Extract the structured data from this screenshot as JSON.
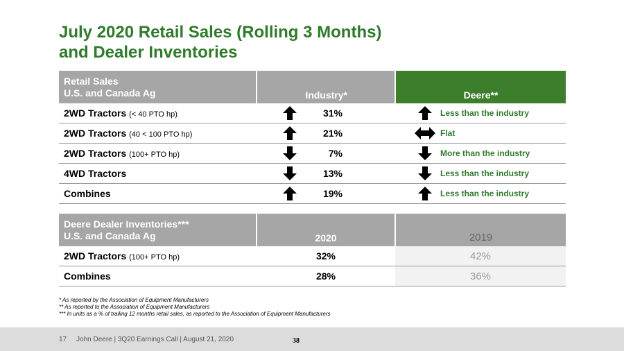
{
  "title": {
    "line1": "July 2020 Retail Sales (Rolling 3 Months)",
    "line2": "and Dealer Inventories"
  },
  "retail": {
    "header": {
      "label_line1": "Retail Sales",
      "label_line2": "U.S. and Canada Ag",
      "col_industry": "Industry*",
      "col_deere": "Deere**"
    },
    "rows": [
      {
        "name": "2WD Tractors",
        "sub": "(< 40 PTO hp)",
        "industry_dir": "up-arrow-icon",
        "industry_pct": "31%",
        "deere_dir": "up-arrow-icon",
        "deere_text": "Less than the industry"
      },
      {
        "name": "2WD Tractors",
        "sub": "(40 < 100 PTO hp)",
        "industry_dir": "up-arrow-icon",
        "industry_pct": "21%",
        "deere_dir": "left-right-arrow-icon",
        "deere_text": "Flat"
      },
      {
        "name": "2WD Tractors",
        "sub": "(100+ PTO hp)",
        "industry_dir": "down-arrow-icon",
        "industry_pct": "7%",
        "deere_dir": "down-arrow-icon",
        "deere_text": "More than the industry"
      },
      {
        "name": "4WD Tractors",
        "sub": "",
        "industry_dir": "down-arrow-icon",
        "industry_pct": "13%",
        "deere_dir": "down-arrow-icon",
        "deere_text": "Less than the industry"
      },
      {
        "name": "Combines",
        "sub": "",
        "industry_dir": "up-arrow-icon",
        "industry_pct": "19%",
        "deere_dir": "up-arrow-icon",
        "deere_text": "Less than the industry"
      }
    ]
  },
  "inventory": {
    "header": {
      "label_line1": "Deere Dealer Inventories***",
      "label_line2": "U.S. and Canada Ag",
      "col_2020": "2020",
      "col_2019": "2019"
    },
    "rows": [
      {
        "name": "2WD Tractors",
        "sub": "(100+ PTO hp)",
        "v2020": "32%",
        "v2019": "42%"
      },
      {
        "name": "Combines",
        "sub": "",
        "v2020": "28%",
        "v2019": "36%"
      }
    ]
  },
  "footnotes": [
    "* As reported by the Association of Equipment Manufacturers",
    "** As reported to the Association of Equipment Manufacturers",
    "*** In units as a % of trailing 12 months retail sales, as reported to the Association of Equipment Manufacturers"
  ],
  "footer": {
    "text": "17     John Deere | 3Q20 Earnings Call | August 21, 2020",
    "page_stamp": "38"
  },
  "colors": {
    "brand_green": "#2f7a2b",
    "header_gray": "#a6a6a6",
    "deere_header_green": "#3d7e2c"
  }
}
